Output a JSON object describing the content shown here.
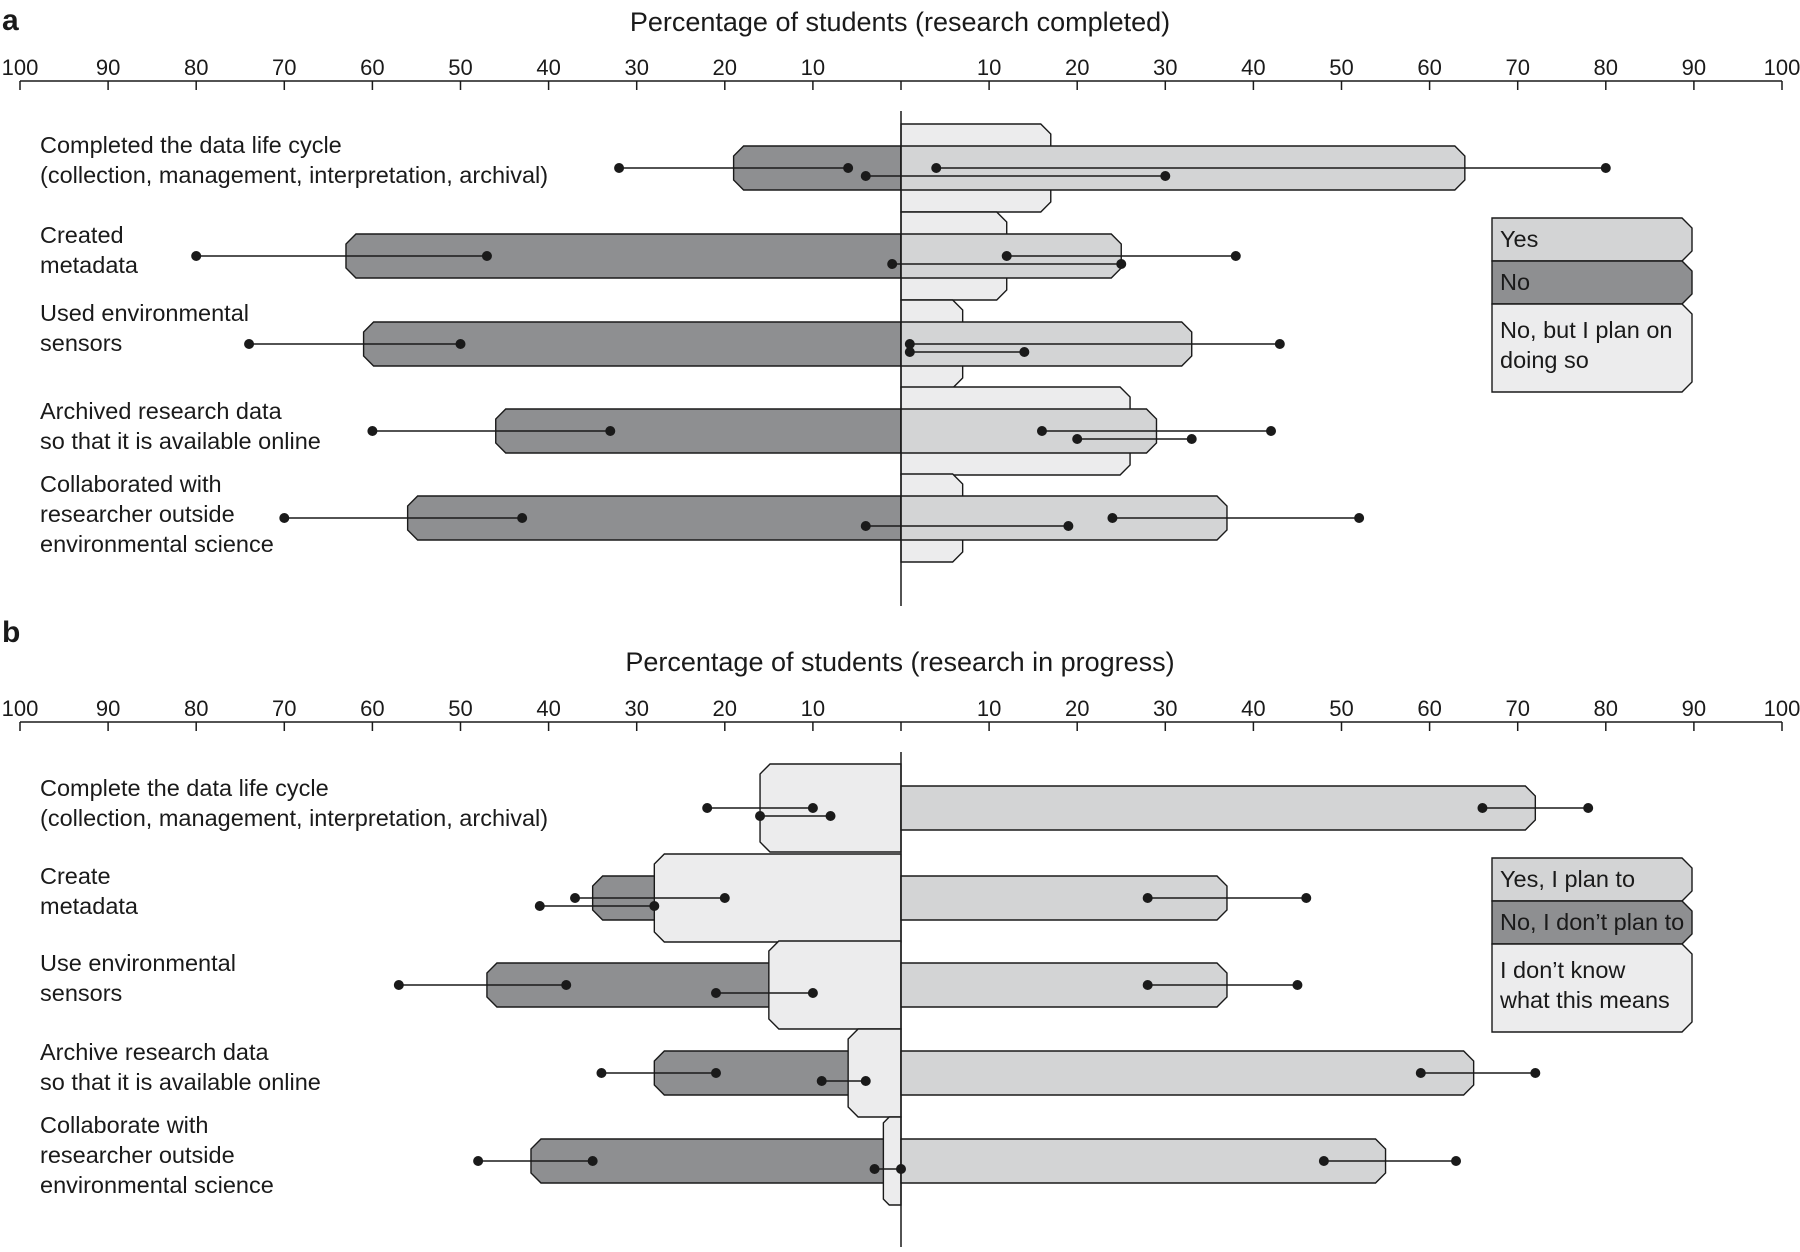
{
  "chart_data": [
    {
      "type": "bar",
      "panel": "a",
      "title": "Percentage of students (research completed)",
      "xlim": [
        -100,
        100
      ],
      "tick_labels": [
        "100",
        "90",
        "80",
        "70",
        "60",
        "50",
        "40",
        "30",
        "20",
        "10",
        "",
        "10",
        "20",
        "30",
        "40",
        "50",
        "60",
        "70",
        "80",
        "90",
        "100"
      ],
      "categories": [
        [
          "Completed the data life cycle",
          "(collection, management, interpretation, archival)"
        ],
        [
          "Created",
          "metadata"
        ],
        [
          "Used environmental",
          "sensors"
        ],
        [
          "Archived research data",
          "so that it is available online"
        ],
        [
          "Collaborated with",
          "researcher outside",
          "environmental science"
        ]
      ],
      "series": [
        {
          "name": "Yes",
          "color": "#d3d4d5",
          "values": [
            64,
            25,
            33,
            29,
            37
          ],
          "ci": [
            [
              4,
              80
            ],
            [
              12,
              38
            ],
            [
              1,
              43
            ],
            [
              16,
              42
            ],
            [
              24,
              52
            ]
          ]
        },
        {
          "name": "No",
          "color": "#8e8f91",
          "values": [
            -19,
            -63,
            -61,
            -46,
            -56
          ],
          "ci": [
            [
              -32,
              -6
            ],
            [
              -80,
              -47
            ],
            [
              -74,
              -50
            ],
            [
              -60,
              -33
            ],
            [
              -70,
              -43
            ]
          ]
        },
        {
          "name": "No, but I plan on doing so",
          "color": "#ececed",
          "values": [
            17,
            12,
            7,
            26,
            7
          ],
          "ci": [
            [
              -4,
              30
            ],
            [
              -1,
              25
            ],
            [
              1,
              14
            ],
            [
              20,
              33
            ],
            [
              -4,
              19
            ]
          ]
        }
      ],
      "legend": {
        "position": "right",
        "labels": [
          [
            "Yes"
          ],
          [
            "No"
          ],
          [
            "No, but I plan on",
            "doing so"
          ]
        ]
      }
    },
    {
      "type": "bar",
      "panel": "b",
      "title": "Percentage of students (research in progress)",
      "xlim": [
        -100,
        100
      ],
      "tick_labels": [
        "100",
        "90",
        "80",
        "70",
        "60",
        "50",
        "40",
        "30",
        "20",
        "10",
        "",
        "10",
        "20",
        "30",
        "40",
        "50",
        "60",
        "70",
        "80",
        "90",
        "100"
      ],
      "categories": [
        [
          "Complete the data life cycle",
          "(collection, management, interpretation, archival)"
        ],
        [
          "Create",
          "metadata"
        ],
        [
          "Use environmental",
          "sensors"
        ],
        [
          "Archive research data",
          "so that it is available online"
        ],
        [
          "Collaborate with",
          "researcher outside",
          "environmental science"
        ]
      ],
      "series": [
        {
          "name": "Yes, I plan to",
          "color": "#d3d4d5",
          "values": [
            72,
            37,
            37,
            65,
            55
          ],
          "ci": [
            [
              66,
              78
            ],
            [
              28,
              46
            ],
            [
              28,
              45
            ],
            [
              59,
              72
            ],
            [
              48,
              63
            ]
          ]
        },
        {
          "name": "No, I don't plan to",
          "color": "#8e8f91",
          "values": [
            -12,
            -35,
            -47,
            -28,
            -42
          ],
          "ci": [
            [
              -22,
              -10
            ],
            [
              -37,
              -20
            ],
            [
              -57,
              -38
            ],
            [
              -34,
              -21
            ],
            [
              -48,
              -35
            ]
          ]
        },
        {
          "name": "I don't know what this means",
          "color": "#ececed",
          "values": [
            -16,
            -28,
            -15,
            -6,
            -2
          ],
          "ci": [
            [
              -16,
              -8
            ],
            [
              -41,
              -28
            ],
            [
              -21,
              -10
            ],
            [
              -9,
              -4
            ],
            [
              -3,
              0
            ]
          ]
        }
      ],
      "legend": {
        "position": "right",
        "labels": [
          [
            "Yes, I plan to"
          ],
          [
            "No, I don’t plan to"
          ],
          [
            "I don’t know",
            "what this means"
          ]
        ]
      }
    }
  ]
}
